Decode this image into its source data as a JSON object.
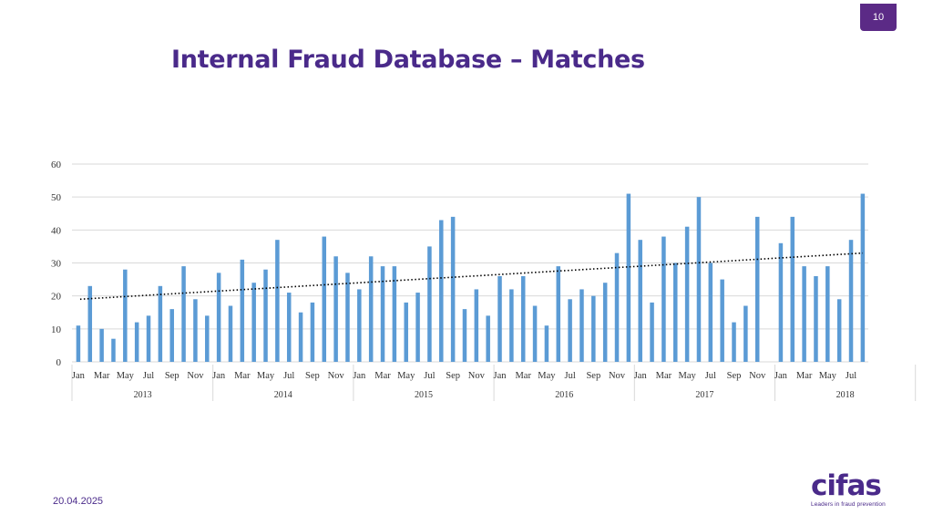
{
  "slide": {
    "page_number": "10",
    "title": "Internal Fraud Database – Matches",
    "date": "20.04.2025",
    "logo_text": "cifas",
    "logo_tagline": "Leaders in fraud prevention"
  },
  "colors": {
    "accent": "#4a2a8a",
    "badge": "#5b2a86",
    "bar": "#5b9bd5",
    "gridline": "#d9d9d9",
    "trendline": "#000000"
  },
  "chart_data": {
    "type": "bar",
    "title": "",
    "xlabel": "",
    "ylabel": "",
    "ylim": [
      0,
      60
    ],
    "yticks": [
      0,
      10,
      20,
      30,
      40,
      50,
      60
    ],
    "grid": true,
    "legend": "none",
    "years": [
      {
        "label": "2013",
        "months": 12
      },
      {
        "label": "2014",
        "months": 12
      },
      {
        "label": "2015",
        "months": 12
      },
      {
        "label": "2016",
        "months": 12
      },
      {
        "label": "2017",
        "months": 12
      },
      {
        "label": "2018",
        "months": 8
      }
    ],
    "month_tick_labels": [
      "Jan",
      "Mar",
      "May",
      "Jul",
      "Sep",
      "Nov"
    ],
    "values": [
      11,
      23,
      10,
      7,
      28,
      12,
      14,
      23,
      16,
      29,
      19,
      14,
      27,
      17,
      31,
      24,
      28,
      37,
      21,
      15,
      18,
      38,
      32,
      27,
      22,
      32,
      29,
      29,
      18,
      21,
      35,
      43,
      44,
      16,
      22,
      14,
      26,
      22,
      26,
      17,
      11,
      29,
      19,
      22,
      20,
      24,
      33,
      51,
      37,
      18,
      38,
      30,
      41,
      50,
      30,
      25,
      12,
      17,
      44,
      0,
      36,
      44,
      29,
      26,
      29,
      19,
      37,
      51
    ],
    "trendline": {
      "style": "dotted",
      "start": 19,
      "end": 33
    }
  }
}
